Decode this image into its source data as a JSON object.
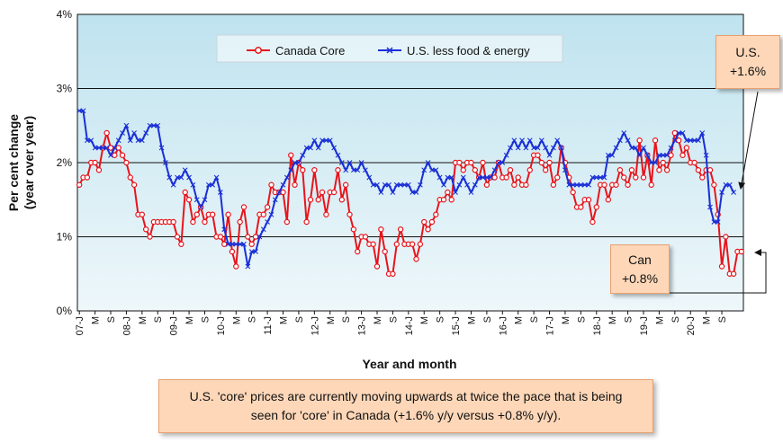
{
  "chart_data": {
    "type": "line",
    "title": "",
    "xlabel": "Year and month",
    "ylabel": [
      "Per cent change",
      "(year over year)"
    ],
    "ylim": [
      0,
      4
    ],
    "y_ticks": [
      "0%",
      "1%",
      "2%",
      "3%",
      "4%"
    ],
    "grid": "horizontal",
    "legend_position": "top-center",
    "x_tick_labels": [
      "07-J",
      "M",
      "S",
      "08-J",
      "M",
      "S",
      "09-J",
      "M",
      "S",
      "10-J",
      "M",
      "S",
      "11-J",
      "M",
      "S",
      "12-J",
      "M",
      "S",
      "13-J",
      "M",
      "S",
      "14-J",
      "M",
      "S",
      "15-J",
      "M",
      "S",
      "16-J",
      "M",
      "S",
      "17-J",
      "M",
      "S",
      "18-J",
      "M",
      "S",
      "19-J",
      "M",
      "S",
      "20-J",
      "M",
      "S"
    ],
    "x_start": "2007-01",
    "x_end": "2020-09",
    "series": [
      {
        "name": "Canada Core",
        "color": "#e8141b",
        "marker": "circle",
        "values": [
          1.7,
          1.8,
          1.8,
          2.0,
          2.0,
          1.9,
          2.2,
          2.4,
          2.2,
          2.1,
          2.2,
          2.1,
          2.0,
          1.8,
          1.7,
          1.3,
          1.3,
          1.1,
          1.0,
          1.2,
          1.2,
          1.2,
          1.2,
          1.2,
          1.2,
          1.0,
          0.9,
          1.6,
          1.5,
          1.2,
          1.3,
          1.4,
          1.2,
          1.3,
          1.3,
          1.0,
          1.0,
          0.9,
          1.3,
          0.8,
          0.6,
          1.2,
          1.4,
          1.0,
          0.9,
          1.0,
          1.3,
          1.3,
          1.4,
          1.7,
          1.6,
          1.6,
          1.6,
          1.2,
          2.1,
          1.7,
          2.0,
          1.9,
          1.2,
          1.5,
          1.9,
          1.5,
          1.6,
          1.3,
          1.6,
          1.6,
          1.9,
          1.5,
          1.7,
          1.3,
          1.1,
          0.8,
          1.0,
          1.0,
          0.9,
          0.9,
          0.6,
          1.1,
          0.8,
          0.5,
          0.5,
          0.9,
          1.1,
          0.9,
          0.9,
          0.9,
          0.7,
          0.9,
          1.2,
          1.1,
          1.2,
          1.3,
          1.5,
          1.5,
          1.6,
          1.5,
          2.0,
          2.0,
          1.9,
          2.0,
          2.0,
          1.9,
          1.8,
          2.0,
          1.7,
          1.8,
          1.8,
          2.0,
          1.8,
          1.8,
          1.9,
          1.7,
          1.8,
          1.7,
          1.7,
          1.9,
          2.1,
          2.1,
          2.0,
          1.9,
          2.0,
          1.7,
          1.8,
          2.2,
          2.0,
          1.8,
          1.6,
          1.4,
          1.4,
          1.5,
          1.5,
          1.2,
          1.4,
          1.7,
          1.7,
          1.5,
          1.7,
          1.7,
          1.9,
          1.8,
          1.7,
          1.9,
          1.8,
          2.3,
          1.8,
          2.1,
          1.7,
          2.3,
          1.9,
          2.0,
          1.9,
          2.1,
          2.4,
          2.3,
          2.1,
          2.2,
          2.0,
          2.0,
          1.9,
          1.8,
          1.9,
          1.9,
          1.7,
          1.3,
          0.6,
          1.0,
          0.5,
          0.5,
          0.8,
          0.8
        ]
      },
      {
        "name": "U.S. less food & energy",
        "color": "#1a2fd6",
        "marker": "x",
        "values": [
          2.7,
          2.7,
          2.3,
          2.3,
          2.2,
          2.2,
          2.2,
          2.2,
          2.1,
          2.2,
          2.3,
          2.4,
          2.5,
          2.3,
          2.4,
          2.3,
          2.3,
          2.4,
          2.5,
          2.5,
          2.5,
          2.2,
          2.0,
          1.8,
          1.7,
          1.8,
          1.8,
          1.9,
          1.8,
          1.7,
          1.5,
          1.4,
          1.5,
          1.7,
          1.7,
          1.8,
          1.6,
          1.1,
          0.9,
          0.9,
          0.9,
          0.9,
          0.9,
          0.6,
          0.8,
          0.8,
          1.0,
          1.1,
          1.2,
          1.3,
          1.5,
          1.6,
          1.7,
          1.8,
          1.9,
          2.0,
          2.0,
          2.1,
          2.2,
          2.2,
          2.3,
          2.2,
          2.3,
          2.3,
          2.3,
          2.2,
          2.1,
          2.0,
          1.9,
          2.0,
          1.9,
          1.9,
          2.0,
          1.9,
          1.8,
          1.7,
          1.7,
          1.6,
          1.7,
          1.7,
          1.6,
          1.7,
          1.7,
          1.7,
          1.7,
          1.6,
          1.6,
          1.7,
          1.9,
          2.0,
          1.9,
          1.9,
          1.8,
          1.7,
          1.8,
          1.8,
          1.6,
          1.7,
          1.8,
          1.7,
          1.6,
          1.7,
          1.8,
          1.8,
          1.8,
          1.8,
          1.9,
          2.0,
          2.0,
          2.1,
          2.2,
          2.3,
          2.2,
          2.3,
          2.2,
          2.3,
          2.2,
          2.2,
          2.3,
          2.2,
          2.1,
          2.2,
          2.3,
          2.2,
          1.9,
          1.7,
          1.7,
          1.7,
          1.7,
          1.7,
          1.7,
          1.8,
          1.8,
          1.8,
          1.8,
          2.1,
          2.1,
          2.2,
          2.3,
          2.4,
          2.3,
          2.2,
          2.2,
          2.1,
          2.2,
          2.1,
          2.0,
          2.0,
          2.1,
          2.1,
          2.1,
          2.2,
          2.3,
          2.4,
          2.4,
          2.3,
          2.3,
          2.3,
          2.3,
          2.4,
          2.1,
          1.4,
          1.2,
          1.2,
          1.6,
          1.7,
          1.7,
          1.6
        ]
      }
    ],
    "annotations": [
      {
        "id": "us",
        "lines": [
          "U.S.",
          "+1.6%"
        ]
      },
      {
        "id": "can",
        "lines": [
          "Can",
          "+0.8%"
        ]
      }
    ]
  },
  "note": {
    "line1": "U.S. 'core' prices are currently moving upwards at twice the pace that is being",
    "line2": "seen for 'core' in Canada (+1.6% y/y versus +0.8% y/y)."
  }
}
